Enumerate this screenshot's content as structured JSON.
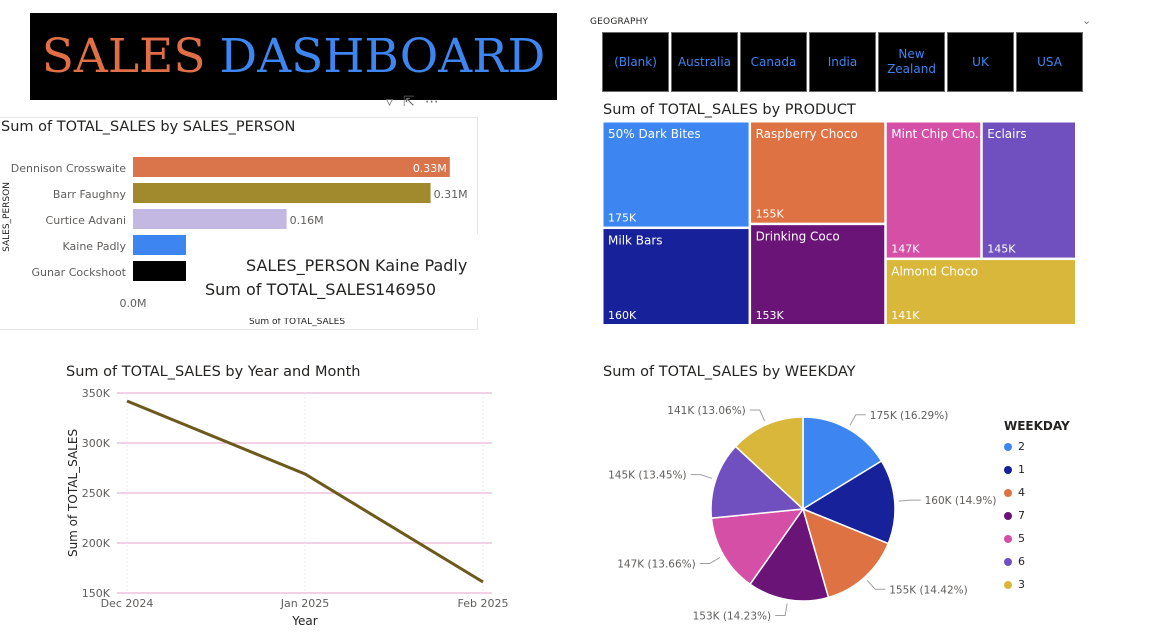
{
  "dashboard": {
    "title_word1": "SALES",
    "title_word2": "DASHBOARD",
    "title_color1": "#e06f47",
    "title_color2": "#3d86f1"
  },
  "geography": {
    "label": "GEOGRAPHY",
    "options": [
      "(Blank)",
      "Australia",
      "Canada",
      "India",
      "New\nZealand",
      "UK",
      "USA"
    ],
    "chevron_icon": "chevron-down-icon"
  },
  "visual_header_icons": [
    "filter-icon",
    "focus-mode-icon",
    "more-options-icon"
  ],
  "tooltip": {
    "label1": "SALES_PERSON",
    "value1": "Kaine Padly",
    "label2": "Sum of TOTAL_SALES",
    "value2": "146950"
  },
  "chart_data": [
    {
      "id": "sales-person",
      "type": "bar",
      "orientation": "horizontal",
      "title": "Sum of TOTAL_SALES by SALES_PERSON",
      "ylabel": "SALES_PERSON",
      "xlabel": "Sum of TOTAL_SALES",
      "categories": [
        "Dennison Crosswaite",
        "Barr Faughny",
        "Curtice Advani",
        "Kaine Padly",
        "Gunar Cockshoot"
      ],
      "values": [
        330000,
        310000,
        160000,
        146950,
        146000
      ],
      "data_labels": [
        "0.33M",
        "0.31M",
        "0.16M",
        "",
        ""
      ],
      "colors": [
        "#d9744b",
        "#a08a2d",
        "#c3b8e2",
        "#3d86f1",
        "#000000"
      ],
      "x_tick_labels": [
        "0.0M"
      ],
      "xlim": [
        0,
        350000
      ]
    },
    {
      "id": "product",
      "type": "treemap",
      "title": "Sum of TOTAL_SALES by PRODUCT",
      "items": [
        {
          "name": "50% Dark Bites",
          "value": 175000,
          "label": "175K",
          "color": "#3d86f1"
        },
        {
          "name": "Milk Bars",
          "value": 160000,
          "label": "160K",
          "color": "#16219a"
        },
        {
          "name": "Raspberry Choco",
          "value": 155000,
          "label": "155K",
          "color": "#de7242"
        },
        {
          "name": "Drinking Coco",
          "value": 153000,
          "label": "153K",
          "color": "#6a1478"
        },
        {
          "name": "Mint Chip Cho...",
          "value": 147000,
          "label": "147K",
          "color": "#d54fa7"
        },
        {
          "name": "Eclairs",
          "value": 145000,
          "label": "145K",
          "color": "#7050be"
        },
        {
          "name": "Almond Choco",
          "value": 141000,
          "label": "141K",
          "color": "#d8b73a"
        }
      ]
    },
    {
      "id": "year-month",
      "type": "line",
      "title": "Sum of TOTAL_SALES by Year and Month",
      "xlabel": "Year",
      "ylabel": "Sum of TOTAL_SALES",
      "x": [
        "Dec 2024",
        "Jan 2025",
        "Feb 2025"
      ],
      "values": [
        342000,
        269000,
        161000
      ],
      "y_ticks": [
        150000,
        200000,
        250000,
        300000,
        350000
      ],
      "y_tick_labels": [
        "150K",
        "200K",
        "250K",
        "300K",
        "350K"
      ],
      "ylim": [
        150000,
        350000
      ],
      "line_color": "#6b5a1c",
      "grid_color": "#e4a3cf"
    },
    {
      "id": "weekday",
      "type": "pie",
      "title": "Sum of TOTAL_SALES by WEEKDAY",
      "legend_title": "WEEKDAY",
      "legend_position": "right",
      "slices": [
        {
          "category": "2",
          "value": 175000,
          "label": "175K (16.29%)",
          "color": "#3d86f1"
        },
        {
          "category": "1",
          "value": 160000,
          "label": "160K (14.9%)",
          "color": "#16219a"
        },
        {
          "category": "4",
          "value": 155000,
          "label": "155K (14.42%)",
          "color": "#de7242"
        },
        {
          "category": "7",
          "value": 153000,
          "label": "153K (14.23%)",
          "color": "#6a1478"
        },
        {
          "category": "5",
          "value": 147000,
          "label": "147K (13.66%)",
          "color": "#d54fa7"
        },
        {
          "category": "6",
          "value": 145000,
          "label": "145K (13.45%)",
          "color": "#7050be"
        },
        {
          "category": "3",
          "value": 141000,
          "label": "141K (13.06%)",
          "color": "#d8b73a"
        }
      ]
    }
  ]
}
